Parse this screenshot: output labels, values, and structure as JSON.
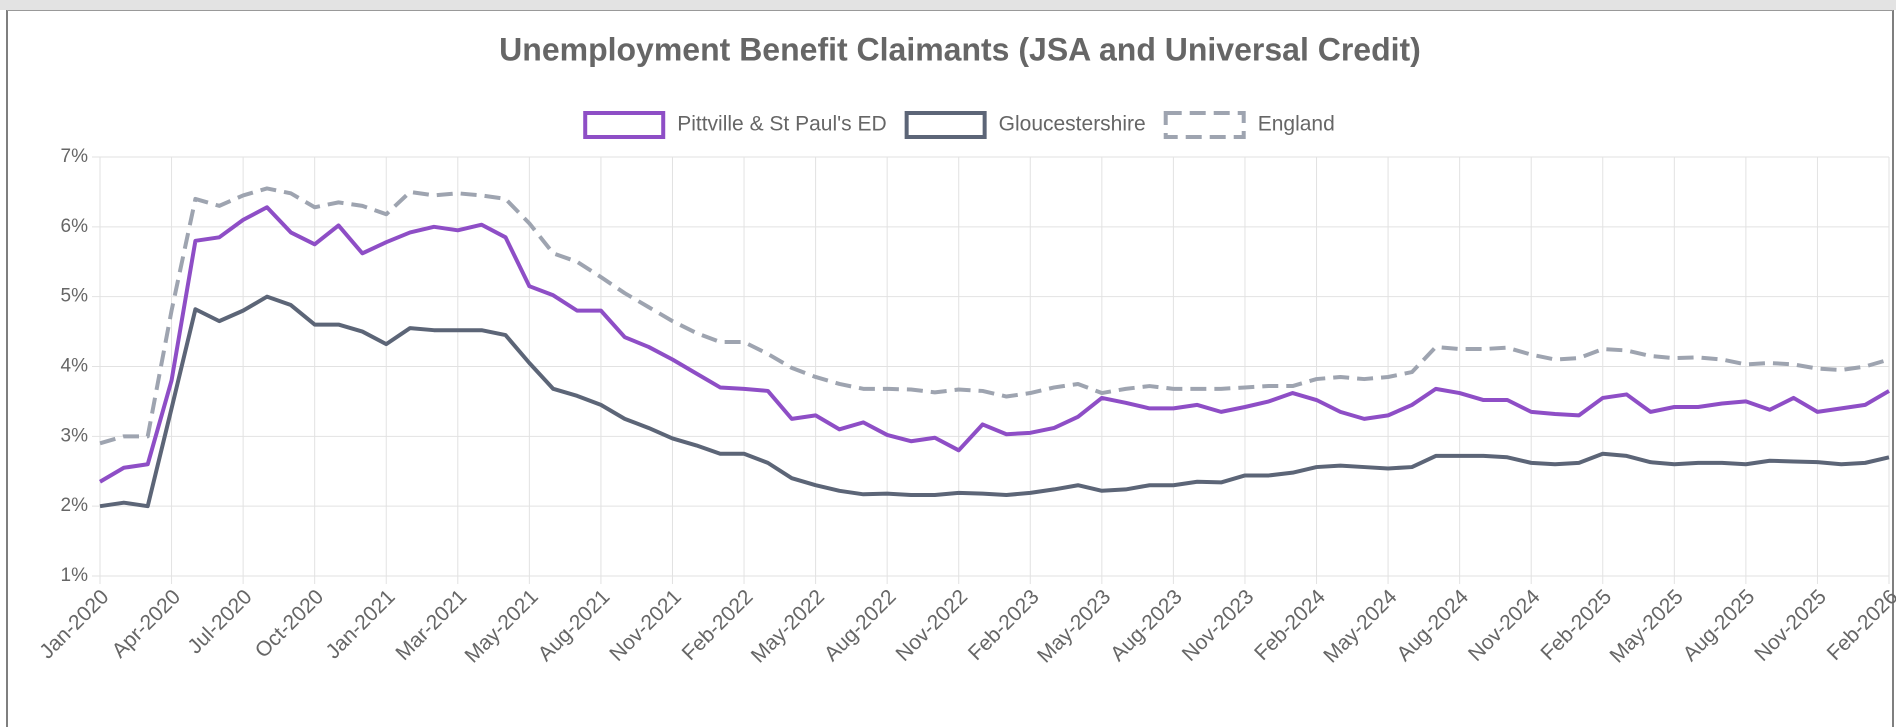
{
  "chart_data": {
    "type": "line",
    "title": "Unemployment Benefit Claimants (JSA and Universal Credit)",
    "categories": [
      "Jan-2020",
      null,
      null,
      "Apr-2020",
      null,
      null,
      "Jul-2020",
      null,
      null,
      "Oct-2020",
      null,
      null,
      "Jan-2021",
      null,
      null,
      "Mar-2021",
      null,
      null,
      "May-2021",
      null,
      null,
      "Aug-2021",
      null,
      null,
      "Nov-2021",
      null,
      null,
      "Feb-2022",
      null,
      null,
      "May-2022",
      null,
      null,
      "Aug-2022",
      null,
      null,
      "Nov-2022",
      null,
      null,
      "Feb-2023",
      null,
      null,
      "May-2023",
      null,
      null,
      "Aug-2023",
      null,
      null,
      "Nov-2023",
      null,
      null,
      "Feb-2024",
      null,
      null,
      "May-2024",
      null,
      null,
      "Aug-2024",
      null,
      null,
      "Nov-2024",
      null,
      null,
      "Feb-2025",
      null,
      null,
      "May-2025",
      null,
      null,
      "Aug-2025",
      null,
      null,
      "Nov-2025",
      null,
      null,
      "Feb-2026"
    ],
    "series": [
      {
        "name": "Pittville & St Paul's ED",
        "color": "#8e4ec6",
        "dashed": false,
        "values": [
          2.35,
          2.55,
          2.6,
          3.8,
          5.8,
          5.85,
          6.1,
          6.28,
          5.92,
          5.75,
          6.02,
          5.62,
          5.78,
          5.92,
          6.0,
          5.95,
          6.03,
          5.85,
          5.15,
          5.02,
          4.8,
          4.8,
          4.42,
          4.28,
          4.1,
          3.9,
          3.7,
          3.68,
          3.65,
          3.25,
          3.3,
          3.1,
          3.2,
          3.02,
          2.93,
          2.98,
          2.8,
          3.17,
          3.03,
          3.05,
          3.12,
          3.28,
          3.55,
          3.48,
          3.4,
          3.4,
          3.45,
          3.35,
          3.42,
          3.5,
          3.62,
          3.52,
          3.35,
          3.25,
          3.3,
          3.45,
          3.68,
          3.62,
          3.52,
          3.52,
          3.35,
          3.32,
          3.3,
          3.55,
          3.6,
          3.35,
          3.42,
          3.42,
          3.47,
          3.5,
          3.38,
          3.55,
          3.35,
          3.4,
          3.45,
          3.65
        ]
      },
      {
        "name": "Gloucestershire",
        "color": "#5c6577",
        "dashed": false,
        "values": [
          2.0,
          2.05,
          2.0,
          3.4,
          4.82,
          4.65,
          4.8,
          5.0,
          4.88,
          4.6,
          4.6,
          4.5,
          4.32,
          4.55,
          4.52,
          4.52,
          4.52,
          4.45,
          4.05,
          3.68,
          3.58,
          3.45,
          3.25,
          3.12,
          2.97,
          2.87,
          2.75,
          2.75,
          2.62,
          2.4,
          2.3,
          2.22,
          2.17,
          2.18,
          2.16,
          2.16,
          2.19,
          2.18,
          2.16,
          2.19,
          2.24,
          2.3,
          2.22,
          2.24,
          2.3,
          2.3,
          2.35,
          2.34,
          2.44,
          2.44,
          2.48,
          2.56,
          2.58,
          2.56,
          2.54,
          2.56,
          2.72,
          2.72,
          2.72,
          2.7,
          2.62,
          2.6,
          2.62,
          2.75,
          2.72,
          2.63,
          2.6,
          2.62,
          2.62,
          2.6,
          2.65,
          2.64,
          2.63,
          2.6,
          2.62,
          2.7
        ]
      },
      {
        "name": "England",
        "color": "#9ea4b0",
        "dashed": true,
        "values": [
          2.9,
          3.0,
          3.0,
          4.8,
          6.4,
          6.3,
          6.45,
          6.55,
          6.48,
          6.28,
          6.35,
          6.3,
          6.18,
          6.5,
          6.45,
          6.48,
          6.45,
          6.4,
          6.05,
          5.62,
          5.5,
          5.28,
          5.05,
          4.85,
          4.65,
          4.48,
          4.35,
          4.35,
          4.18,
          3.98,
          3.85,
          3.75,
          3.68,
          3.68,
          3.67,
          3.63,
          3.67,
          3.65,
          3.57,
          3.62,
          3.7,
          3.75,
          3.62,
          3.68,
          3.72,
          3.68,
          3.68,
          3.68,
          3.7,
          3.72,
          3.72,
          3.82,
          3.85,
          3.82,
          3.85,
          3.92,
          4.28,
          4.25,
          4.25,
          4.27,
          4.17,
          4.1,
          4.12,
          4.25,
          4.23,
          4.15,
          4.12,
          4.13,
          4.1,
          4.03,
          4.05,
          4.03,
          3.97,
          3.95,
          4.0,
          4.1
        ]
      }
    ],
    "ylim": [
      1,
      7
    ],
    "yticks": [
      {
        "value": 1,
        "label": "1%"
      },
      {
        "value": 2,
        "label": "2%"
      },
      {
        "value": 3,
        "label": "3%"
      },
      {
        "value": 4,
        "label": "4%"
      },
      {
        "value": 5,
        "label": "5%"
      },
      {
        "value": 6,
        "label": "6%"
      },
      {
        "value": 7,
        "label": "7%"
      }
    ],
    "grid": true,
    "legend": "top"
  }
}
